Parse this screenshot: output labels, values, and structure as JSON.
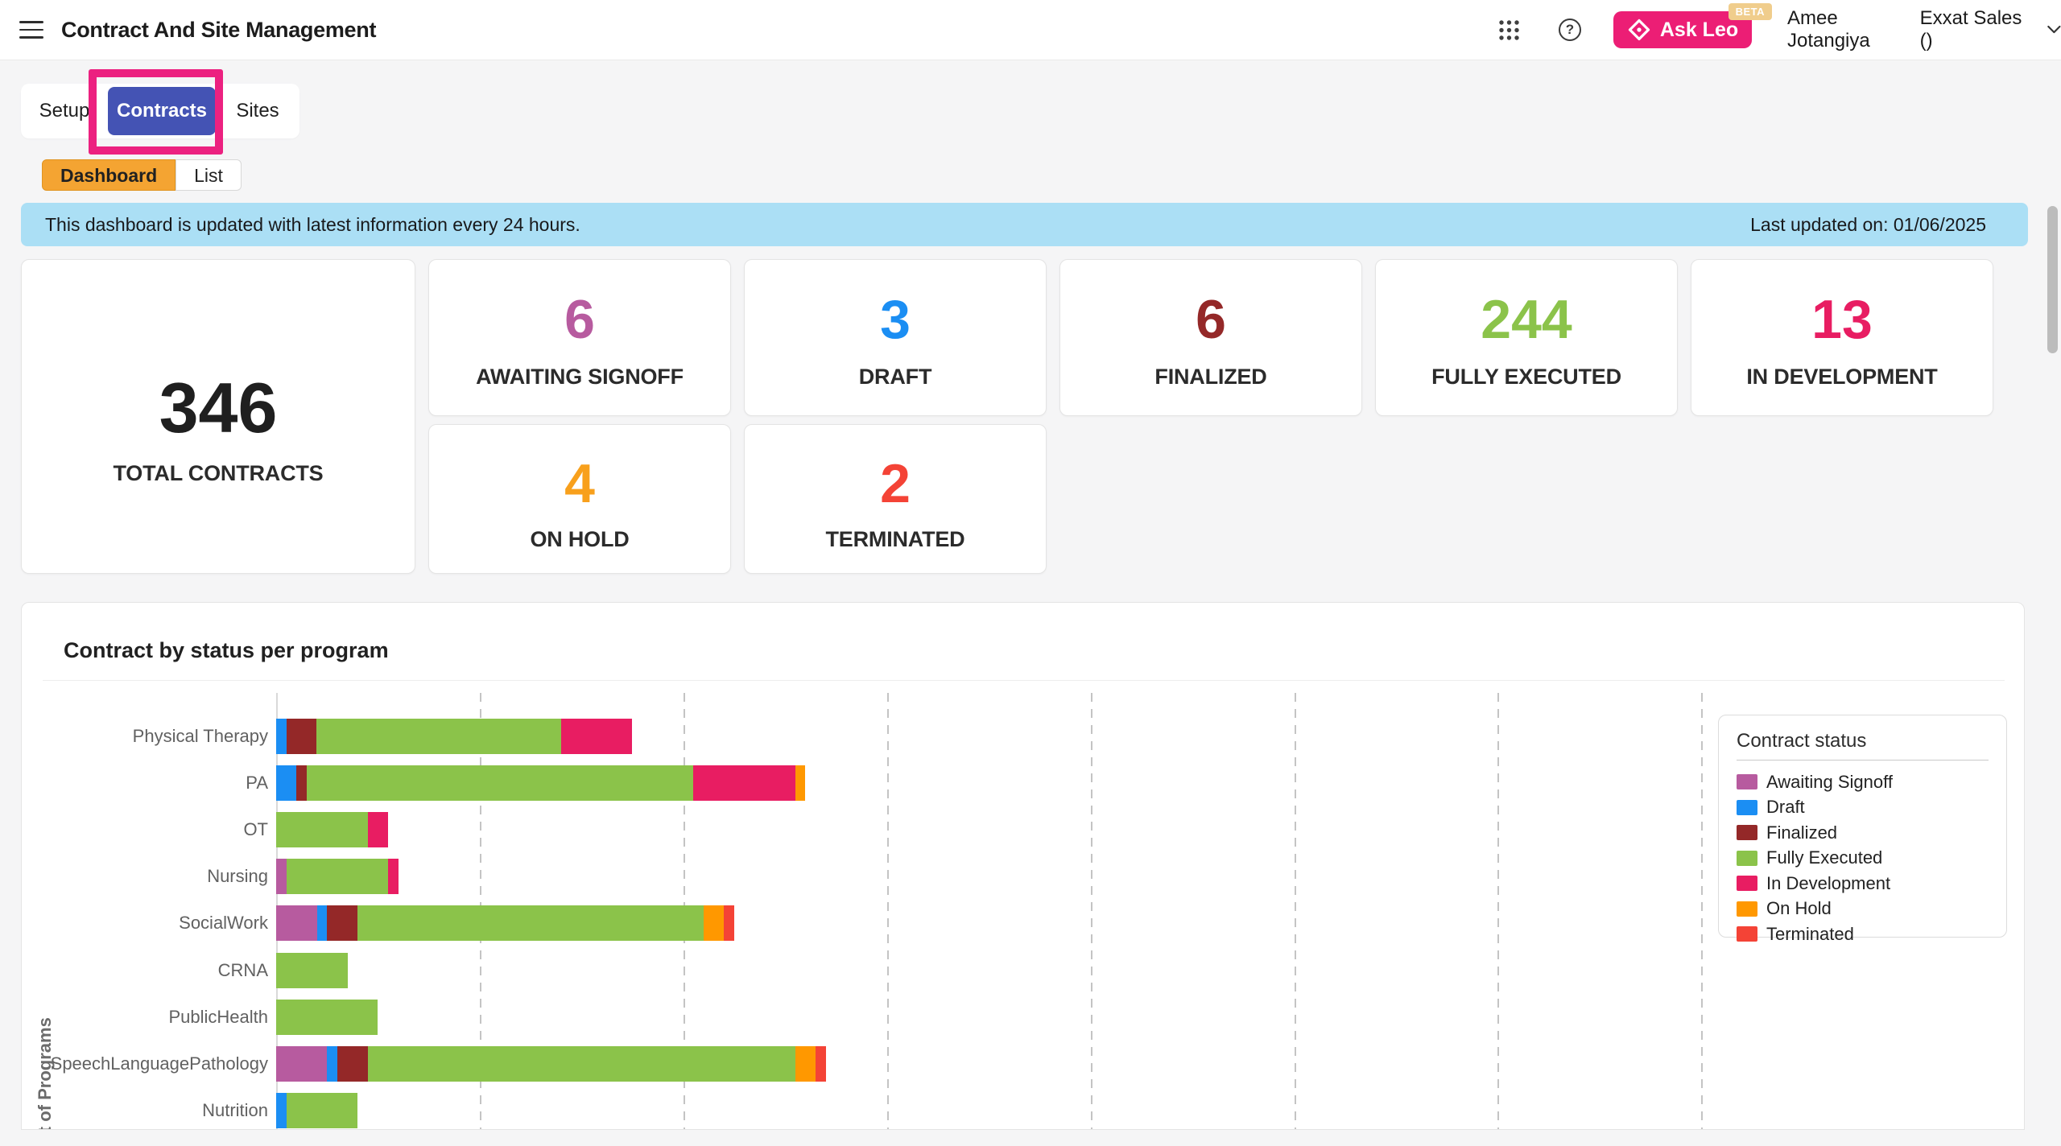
{
  "header": {
    "title": "Contract And Site Management",
    "ask_leo_label": "Ask Leo",
    "beta_badge": "BETA",
    "user_name": "Amee Jotangiya",
    "user_org": "Exxat Sales ()"
  },
  "tabs": {
    "items": [
      {
        "label": "Setup",
        "active": false
      },
      {
        "label": "Contracts",
        "active": true
      },
      {
        "label": "Sites",
        "active": false
      }
    ]
  },
  "subtabs": {
    "items": [
      {
        "label": "Dashboard",
        "active": true
      },
      {
        "label": "List",
        "active": false
      }
    ]
  },
  "banner": {
    "message": "This dashboard is updated with latest information every 24 hours.",
    "last_updated": "Last updated on: 01/06/2025"
  },
  "stats": {
    "total": {
      "value": "346",
      "label": "TOTAL CONTRACTS",
      "color": "#1f1f1f"
    },
    "cards": [
      {
        "value": "6",
        "label": "AWAITING SIGNOFF",
        "color": "#b75b9f",
        "row": 1,
        "col": 1
      },
      {
        "value": "3",
        "label": "DRAFT",
        "color": "#1b8ef3",
        "row": 1,
        "col": 2
      },
      {
        "value": "6",
        "label": "FINALIZED",
        "color": "#942828",
        "row": 1,
        "col": 3
      },
      {
        "value": "244",
        "label": "FULLY EXECUTED",
        "color": "#8bc34a",
        "row": 1,
        "col": 4
      },
      {
        "value": "13",
        "label": "IN DEVELOPMENT",
        "color": "#e81d62",
        "row": 1,
        "col": 5
      },
      {
        "value": "4",
        "label": "ON HOLD",
        "color": "#f8a01c",
        "row": 2,
        "col": 1
      },
      {
        "value": "2",
        "label": "TERMINATED",
        "color": "#f44336",
        "row": 2,
        "col": 2
      }
    ]
  },
  "chart_data": {
    "type": "bar",
    "orientation": "horizontal-stacked",
    "title": "Contract by status per program",
    "y_axis_label": "List of Programs",
    "legend_title": "Contract status",
    "legend_position": "right",
    "x_axis_tick_labels_visible": false,
    "x_gridline_interval": 20,
    "grid": true,
    "categories": [
      "Physical Therapy",
      "PA",
      "OT",
      "Nursing",
      "SocialWork",
      "CRNA",
      "PublicHealth",
      "SpeechLanguagePathology",
      "Nutrition"
    ],
    "series": [
      {
        "name": "Awaiting Signoff",
        "color": "#b75b9f",
        "values": [
          0,
          0,
          0,
          1,
          4,
          0,
          0,
          5,
          0
        ]
      },
      {
        "name": "Draft",
        "color": "#1b8ef3",
        "values": [
          1,
          2,
          0,
          0,
          1,
          0,
          0,
          1,
          1
        ]
      },
      {
        "name": "Finalized",
        "color": "#942828",
        "values": [
          3,
          1,
          0,
          0,
          3,
          0,
          0,
          3,
          0
        ]
      },
      {
        "name": "Fully Executed",
        "color": "#8bc34a",
        "values": [
          24,
          38,
          9,
          10,
          34,
          7,
          10,
          42,
          7
        ]
      },
      {
        "name": "In Development",
        "color": "#e81d62",
        "values": [
          7,
          10,
          2,
          1,
          0,
          0,
          0,
          0,
          0
        ]
      },
      {
        "name": "On Hold",
        "color": "#ff9800",
        "values": [
          0,
          1,
          0,
          0,
          2,
          0,
          0,
          2,
          0
        ]
      },
      {
        "name": "Terminated",
        "color": "#f44336",
        "values": [
          0,
          0,
          0,
          0,
          1,
          0,
          0,
          1,
          0
        ]
      }
    ]
  },
  "colors": {
    "ask_leo": "#ec1e75",
    "annotation_box": "#ec2180",
    "active_tab": "#4453b4",
    "active_subtab": "#f4a432",
    "banner_bg": "#abdff5"
  }
}
